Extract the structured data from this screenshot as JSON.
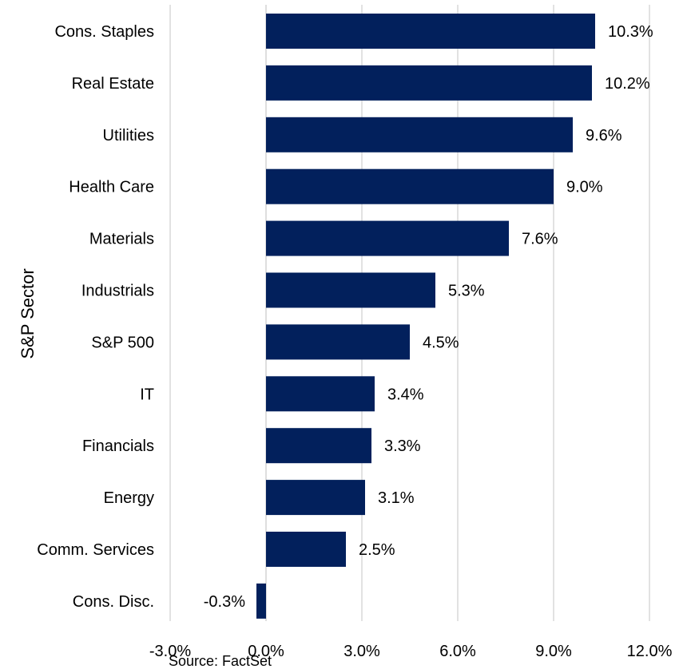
{
  "chart_data": {
    "type": "bar",
    "orientation": "horizontal",
    "ylabel": "S&P Sector",
    "xlabel": "",
    "source": "Source: FactSet",
    "categories": [
      "Cons. Staples",
      "Real Estate",
      "Utilities",
      "Health Care",
      "Materials",
      "Industrials",
      "S&P 500",
      "IT",
      "Financials",
      "Energy",
      "Comm. Services",
      "Cons. Disc."
    ],
    "values": [
      10.3,
      10.2,
      9.6,
      9.0,
      7.6,
      5.3,
      4.5,
      3.4,
      3.3,
      3.1,
      2.5,
      -0.3
    ],
    "data_labels": [
      "10.3%",
      "10.2%",
      "9.6%",
      "9.0%",
      "7.6%",
      "5.3%",
      "4.5%",
      "3.4%",
      "3.3%",
      "3.1%",
      "2.5%",
      "-0.3%"
    ],
    "xlim": [
      -3.0,
      12.0
    ],
    "xticks": [
      -3.0,
      0.0,
      3.0,
      6.0,
      9.0,
      12.0
    ],
    "xtick_labels": [
      "-3.0%",
      "0.0%",
      "3.0%",
      "6.0%",
      "9.0%",
      "12.0%"
    ],
    "grid": "vertical",
    "legend": "none",
    "colors": {
      "bar": "#02205c",
      "grid": "#d9d9d9",
      "text": "#000000"
    }
  }
}
